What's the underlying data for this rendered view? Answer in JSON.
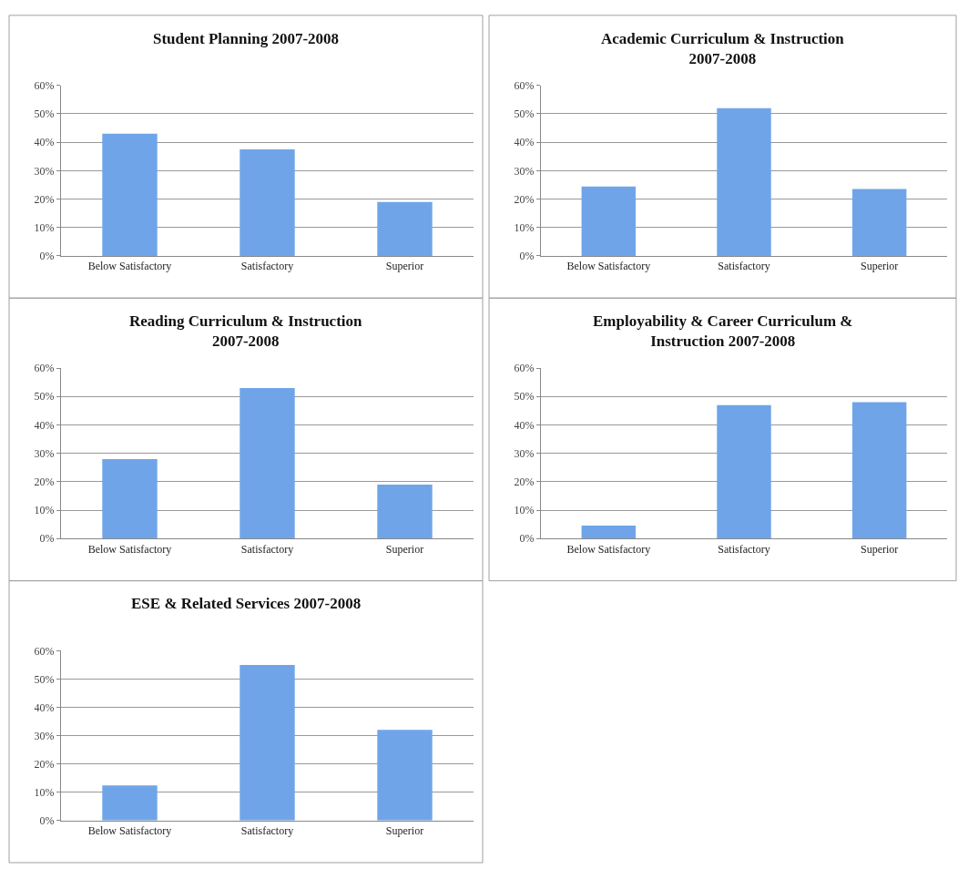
{
  "chart_data": [
    {
      "type": "bar",
      "title": "Student Planning 2007-2008",
      "categories": [
        "Below Satisfactory",
        "Satisfactory",
        "Superior"
      ],
      "values": [
        43,
        37.5,
        19
      ],
      "color": "#6fa5e8",
      "ylim": [
        0,
        60
      ],
      "yticks": [
        {
          "value": 0,
          "label": "0%"
        },
        {
          "value": 10,
          "label": "10%"
        },
        {
          "value": 20,
          "label": "20%"
        },
        {
          "value": 30,
          "label": "30%"
        },
        {
          "value": 40,
          "label": "40%"
        },
        {
          "value": 50,
          "label": "50%"
        },
        {
          "value": 60,
          "label": "60%"
        }
      ],
      "grid": "y"
    },
    {
      "type": "bar",
      "title": "Academic Curriculum & Instruction\n2007-2008",
      "categories": [
        "Below Satisfactory",
        "Satisfactory",
        "Superior"
      ],
      "values": [
        24.4,
        52,
        23.5
      ],
      "color": "#6fa5e8",
      "ylim": [
        0,
        60
      ],
      "yticks": [
        {
          "value": 0,
          "label": "0%"
        },
        {
          "value": 10,
          "label": "10%"
        },
        {
          "value": 20,
          "label": "20%"
        },
        {
          "value": 30,
          "label": "30%"
        },
        {
          "value": 40,
          "label": "40%"
        },
        {
          "value": 50,
          "label": "50%"
        },
        {
          "value": 60,
          "label": "60%"
        }
      ],
      "grid": "y"
    },
    {
      "type": "bar",
      "title": "Reading Curriculum & Instruction\n2007-2008",
      "categories": [
        "Below Satisfactory",
        "Satisfactory",
        "Superior"
      ],
      "values": [
        28,
        53,
        19
      ],
      "color": "#6fa5e8",
      "ylim": [
        0,
        60
      ],
      "yticks": [
        {
          "value": 0,
          "label": "0%"
        },
        {
          "value": 10,
          "label": "10%"
        },
        {
          "value": 20,
          "label": "20%"
        },
        {
          "value": 30,
          "label": "30%"
        },
        {
          "value": 40,
          "label": "40%"
        },
        {
          "value": 50,
          "label": "50%"
        },
        {
          "value": 60,
          "label": "60%"
        }
      ],
      "grid": "y"
    },
    {
      "type": "bar",
      "title": "Employability & Career Curriculum &\nInstruction 2007-2008",
      "categories": [
        "Below Satisfactory",
        "Satisfactory",
        "Superior"
      ],
      "values": [
        4.6,
        47,
        48
      ],
      "color": "#6fa5e8",
      "ylim": [
        0,
        60
      ],
      "yticks": [
        {
          "value": 0,
          "label": "0%"
        },
        {
          "value": 10,
          "label": "10%"
        },
        {
          "value": 20,
          "label": "20%"
        },
        {
          "value": 30,
          "label": "30%"
        },
        {
          "value": 40,
          "label": "40%"
        },
        {
          "value": 50,
          "label": "50%"
        },
        {
          "value": 60,
          "label": "60%"
        }
      ],
      "grid": "y"
    },
    {
      "type": "bar",
      "title": "ESE & Related Services 2007-2008",
      "categories": [
        "Below Satisfactory",
        "Satisfactory",
        "Superior"
      ],
      "values": [
        12.4,
        55,
        32
      ],
      "color": "#6fa5e8",
      "ylim": [
        0,
        60
      ],
      "yticks": [
        {
          "value": 0,
          "label": "0%"
        },
        {
          "value": 10,
          "label": "10%"
        },
        {
          "value": 20,
          "label": "20%"
        },
        {
          "value": 30,
          "label": "30%"
        },
        {
          "value": 40,
          "label": "40%"
        },
        {
          "value": 50,
          "label": "50%"
        },
        {
          "value": 60,
          "label": "60%"
        }
      ],
      "grid": "y"
    }
  ]
}
